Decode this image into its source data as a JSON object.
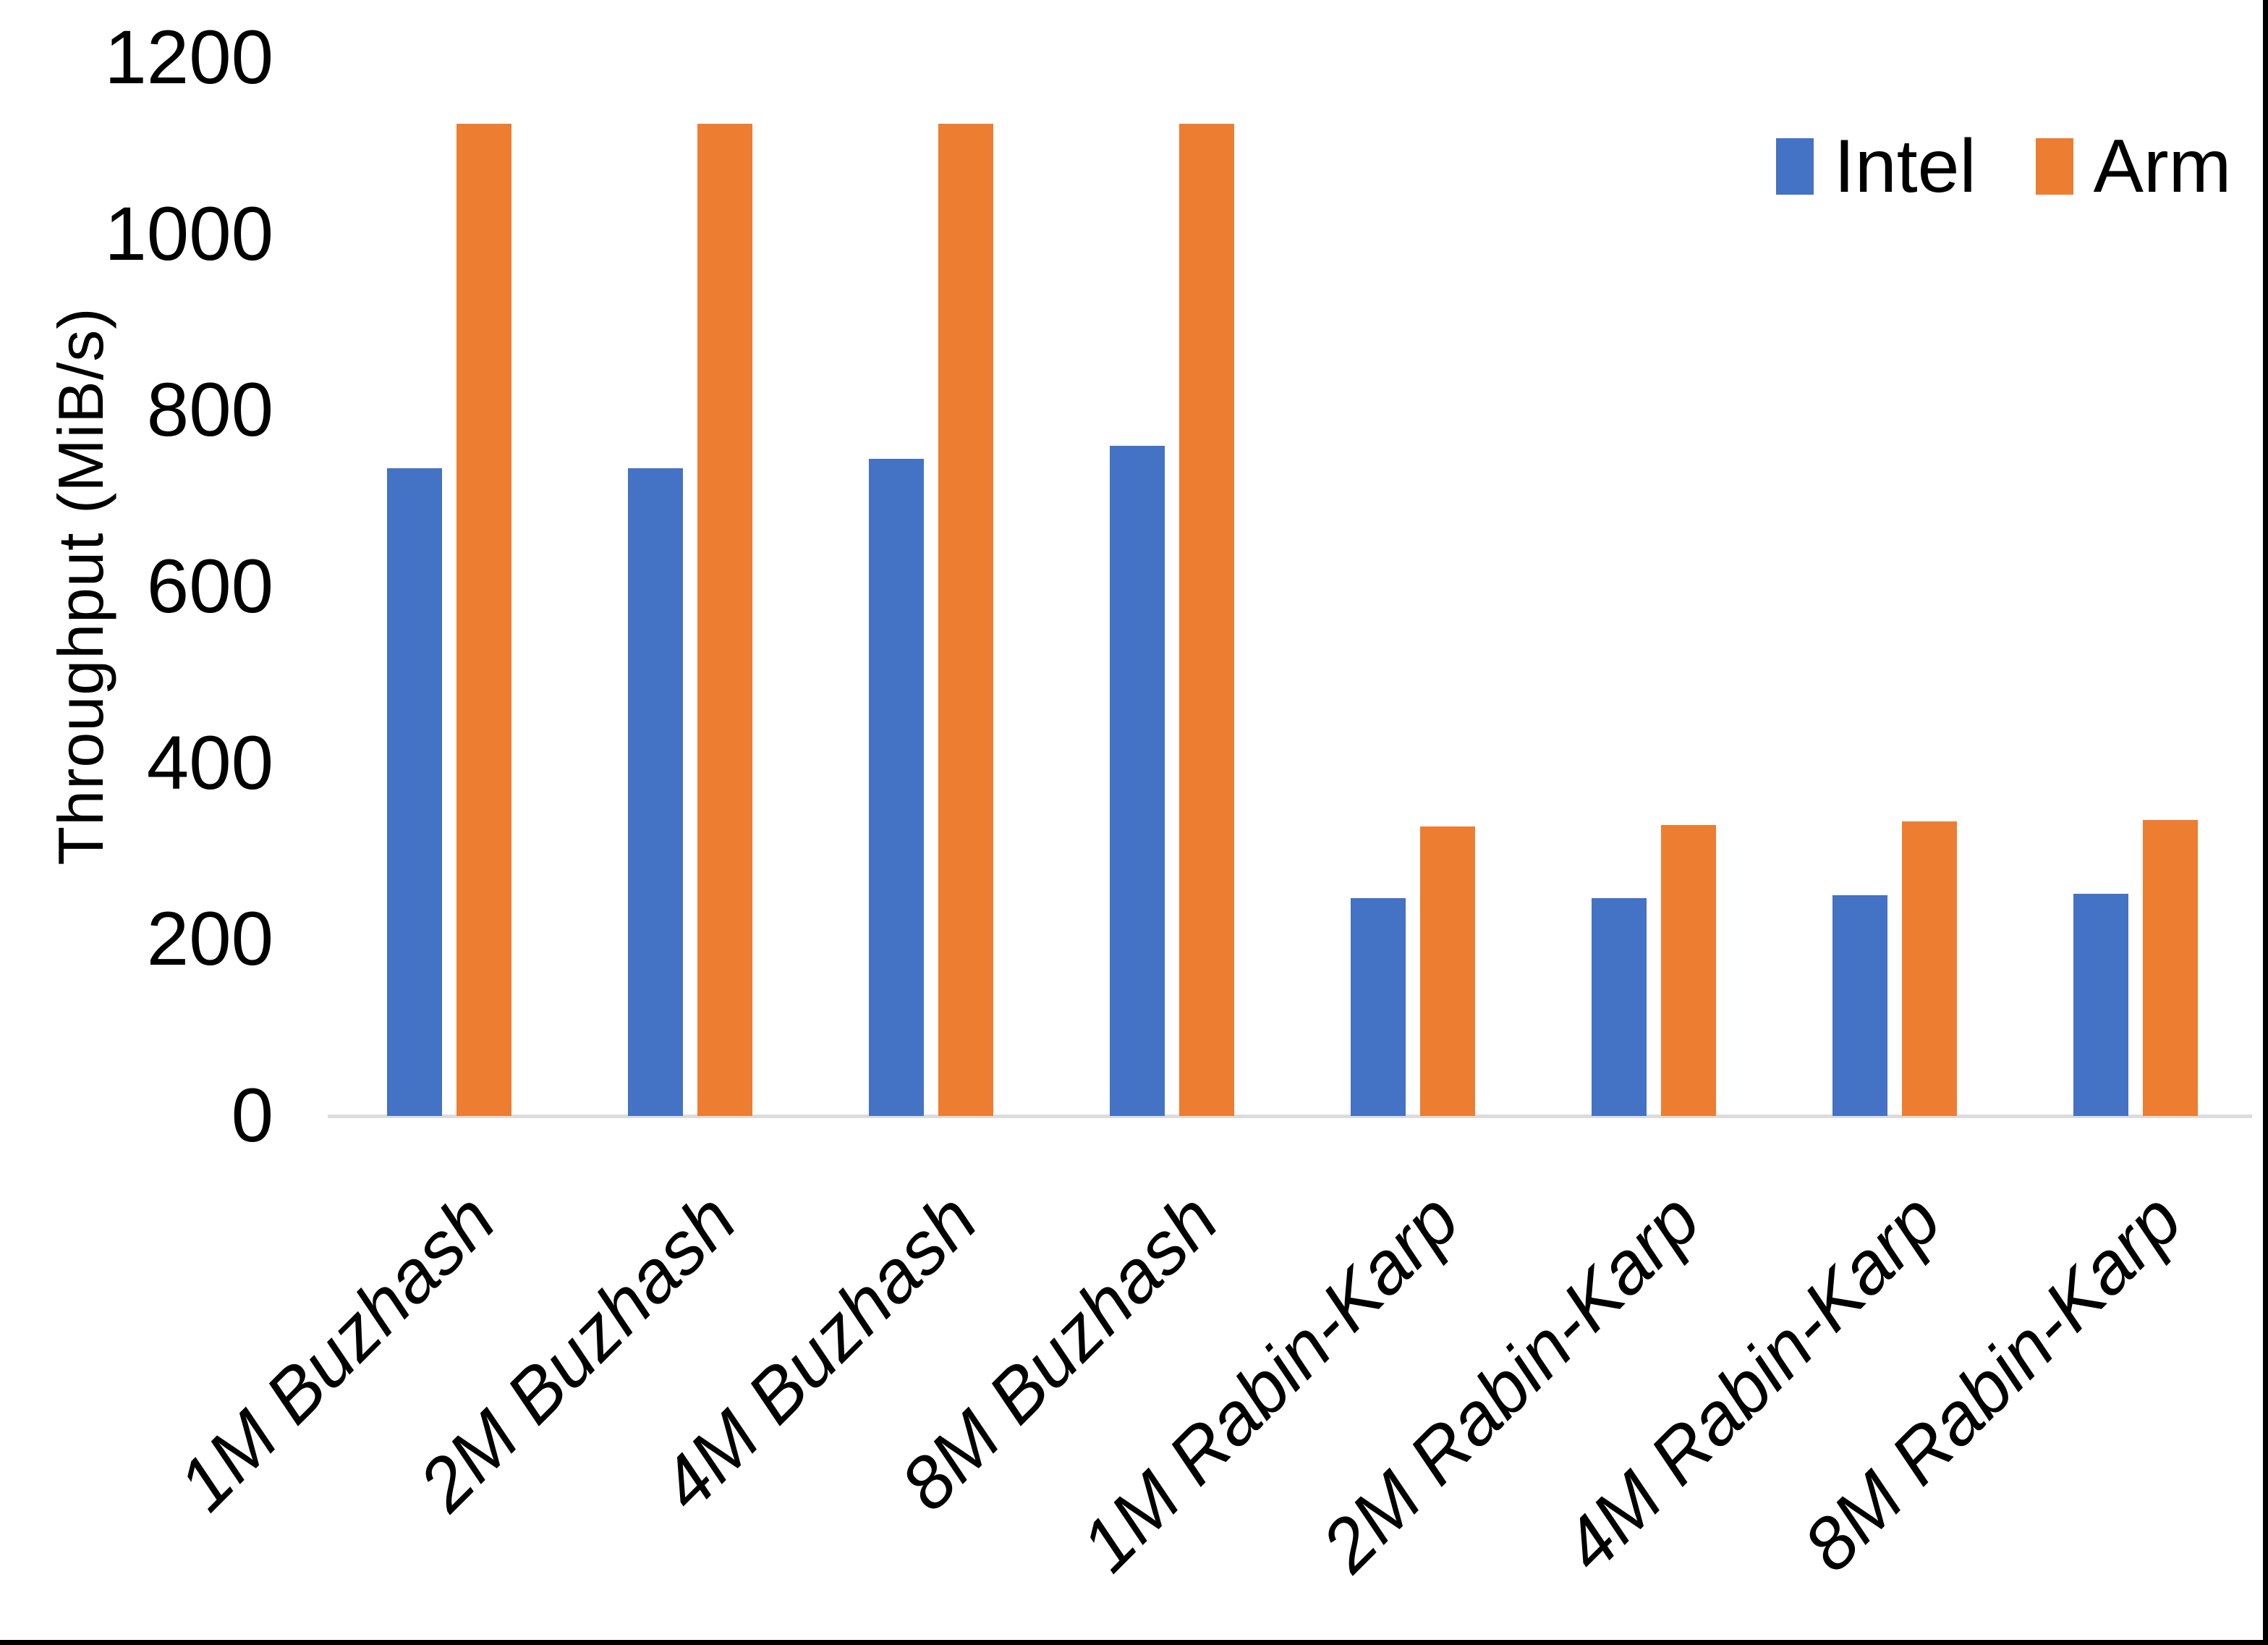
{
  "chart_data": {
    "type": "bar",
    "title": "",
    "xlabel": "",
    "ylabel": "Throughput (MiB/s)",
    "categories": [
      "1M Buzhash",
      "2M Buzhash",
      "4M Buzhash",
      "8M Buzhash",
      "1M Rabin-Karp",
      "2M Rabin-Karp",
      "4M Rabin-Karp",
      "8M Rabin-Karp"
    ],
    "series": [
      {
        "name": "Intel",
        "color": "#4472C4",
        "values": [
          735,
          735,
          745,
          760,
          247,
          247,
          250,
          252
        ]
      },
      {
        "name": "Arm",
        "color": "#ED7D31",
        "values": [
          1125,
          1125,
          1125,
          1125,
          328,
          330,
          334,
          336
        ]
      }
    ],
    "y_ticks": [
      0,
      200,
      400,
      600,
      800,
      1000,
      1200
    ],
    "ylim": [
      0,
      1200
    ],
    "grid": false,
    "legend_position": "top-right",
    "axis_line_color": "#DCDCDC"
  },
  "legend": {
    "items": [
      {
        "label": "Intel",
        "color": "#4472C4"
      },
      {
        "label": "Arm",
        "color": "#ED7D31"
      }
    ]
  },
  "frame": {
    "border_color": "#000000",
    "background": "#FFFFFF"
  }
}
